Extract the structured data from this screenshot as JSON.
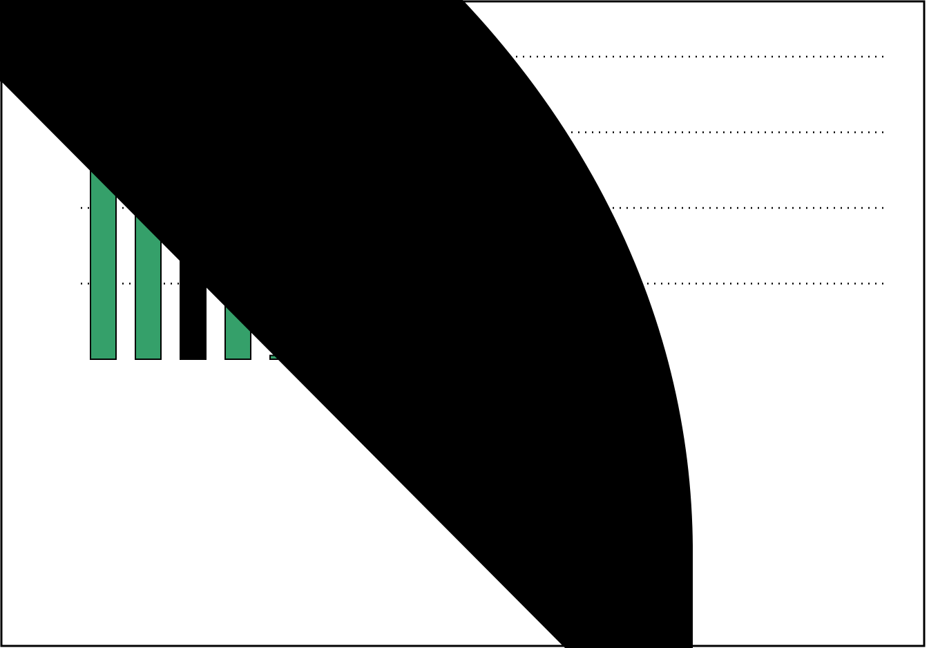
{
  "colors": {
    "bar": "#35a06a",
    "bar_dark": "#000000",
    "frame": "#000000",
    "background": "#ffffff",
    "occluder": "#000000"
  },
  "chart_data": {
    "type": "bar",
    "title": "",
    "xlabel": "",
    "ylabel": "",
    "categories": [
      "",
      "",
      "",
      "",
      ""
    ],
    "values": [
      2.5,
      2.35,
      1.3,
      0.7,
      0.05
    ],
    "bar_colors": [
      "bar",
      "bar",
      "bar_dark",
      "bar",
      "bar"
    ],
    "ylim": [
      0,
      4
    ],
    "gridlines": [
      1,
      2,
      3,
      4
    ],
    "grid": true,
    "grid_style": "dotted",
    "legend": "none",
    "occluded": true
  }
}
